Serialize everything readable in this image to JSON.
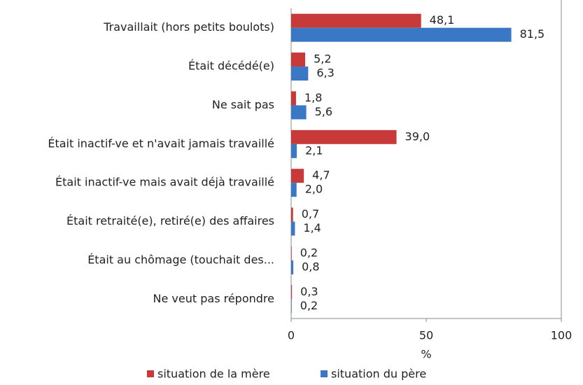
{
  "chart_data": {
    "type": "bar",
    "orientation": "horizontal",
    "categories": [
      "Travaillait (hors petits boulots)",
      "Était décédé(e)",
      "Ne sait pas",
      "Était inactif-ve et n'avait jamais travaillé",
      "Était inactif-ve mais avait déjà travaillé",
      "Était retraité(e), retiré(e) des affaires",
      "Était au chômage (touchait des...",
      "Ne veut pas répondre"
    ],
    "series": [
      {
        "name": "situation de la mère",
        "color": "#c83a3a",
        "values": [
          48.1,
          5.2,
          1.8,
          39.0,
          4.7,
          0.7,
          0.2,
          0.3
        ],
        "value_labels": [
          "48,1",
          "5,2",
          "1,8",
          "39,0",
          "4,7",
          "0,7",
          "0,2",
          "0,3"
        ]
      },
      {
        "name": "situation du père",
        "color": "#3a77c4",
        "values": [
          81.5,
          6.3,
          5.6,
          2.1,
          2.0,
          1.4,
          0.8,
          0.2
        ],
        "value_labels": [
          "81,5",
          "6,3",
          "5,6",
          "2,1",
          "2,0",
          "1,4",
          "0,8",
          "0,2"
        ]
      }
    ],
    "xlabel": "%",
    "xlim": [
      0,
      100
    ],
    "xticks": [
      0,
      50,
      100
    ],
    "grid": false,
    "legend": "bottom"
  }
}
